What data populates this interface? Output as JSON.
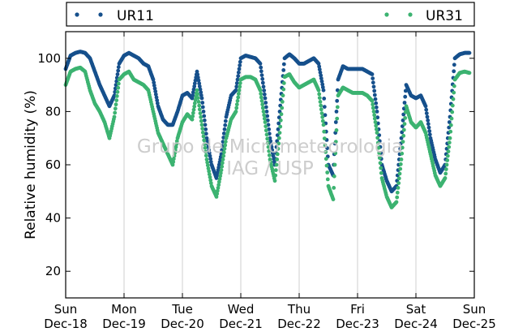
{
  "chart_data": {
    "type": "scatter",
    "title": "",
    "xlabel": "",
    "ylabel": "Relative humidity (%)",
    "ylim": [
      10,
      110
    ],
    "xlim": [
      "2016-12-18",
      "2016-12-25"
    ],
    "y_ticks": [
      20,
      40,
      60,
      80,
      100
    ],
    "x_ticks": [
      {
        "date": "2016-12-18",
        "day": "Sun",
        "label": "Dec-18"
      },
      {
        "date": "2016-12-19",
        "day": "Mon",
        "label": "Dec-19"
      },
      {
        "date": "2016-12-20",
        "day": "Tue",
        "label": "Dec-20"
      },
      {
        "date": "2016-12-21",
        "day": "Wed",
        "label": "Dec-21"
      },
      {
        "date": "2016-12-22",
        "day": "Thu",
        "label": "Dec-22"
      },
      {
        "date": "2016-12-23",
        "day": "Fri",
        "label": "Dec-23"
      },
      {
        "date": "2016-12-24",
        "day": "Sat",
        "label": "Dec-24"
      },
      {
        "date": "2016-12-25",
        "day": "Sun",
        "label": "Dec-25"
      }
    ],
    "grid": "vertical",
    "legend_position": "top, outside plot",
    "watermark": [
      "Grupo de Micrometeorologia",
      "IAG / USP"
    ],
    "series": [
      {
        "name": "UR11",
        "color": "#16508c",
        "points": [
          [
            "2016-12-18 00:00",
            96
          ],
          [
            "2016-12-18 02:00",
            101
          ],
          [
            "2016-12-18 04:00",
            102
          ],
          [
            "2016-12-18 06:00",
            102.5
          ],
          [
            "2016-12-18 08:00",
            102
          ],
          [
            "2016-12-18 10:00",
            100
          ],
          [
            "2016-12-18 12:00",
            95
          ],
          [
            "2016-12-18 14:00",
            90
          ],
          [
            "2016-12-18 16:00",
            86
          ],
          [
            "2016-12-18 18:00",
            82
          ],
          [
            "2016-12-18 20:00",
            86
          ],
          [
            "2016-12-18 22:00",
            98
          ],
          [
            "2016-12-19 00:00",
            101
          ],
          [
            "2016-12-19 02:00",
            102
          ],
          [
            "2016-12-19 04:00",
            101
          ],
          [
            "2016-12-19 06:00",
            100
          ],
          [
            "2016-12-19 08:00",
            98
          ],
          [
            "2016-12-19 10:00",
            97
          ],
          [
            "2016-12-19 12:00",
            92
          ],
          [
            "2016-12-19 14:00",
            82
          ],
          [
            "2016-12-19 16:00",
            77
          ],
          [
            "2016-12-19 18:00",
            75
          ],
          [
            "2016-12-19 20:00",
            75
          ],
          [
            "2016-12-19 22:00",
            80
          ],
          [
            "2016-12-20 00:00",
            86
          ],
          [
            "2016-12-20 02:00",
            87
          ],
          [
            "2016-12-20 04:00",
            85
          ],
          [
            "2016-12-20 06:00",
            95
          ],
          [
            "2016-12-20 08:00",
            85
          ],
          [
            "2016-12-20 10:00",
            70
          ],
          [
            "2016-12-20 12:00",
            60
          ],
          [
            "2016-12-20 14:00",
            55
          ],
          [
            "2016-12-20 16:00",
            64
          ],
          [
            "2016-12-20 18:00",
            78
          ],
          [
            "2016-12-20 20:00",
            86
          ],
          [
            "2016-12-20 22:00",
            88
          ],
          [
            "2016-12-21 00:00",
            100
          ],
          [
            "2016-12-21 02:00",
            101
          ],
          [
            "2016-12-21 04:00",
            100.5
          ],
          [
            "2016-12-21 06:00",
            100
          ],
          [
            "2016-12-21 08:00",
            98
          ],
          [
            "2016-12-21 10:00",
            85
          ],
          [
            "2016-12-21 12:00",
            70
          ],
          [
            "2016-12-21 14:00",
            60
          ],
          [
            "2016-12-21 16:00",
            80
          ],
          [
            "2016-12-21 18:00",
            100
          ],
          [
            "2016-12-21 20:00",
            101.5
          ],
          [
            "2016-12-21 22:00",
            100
          ],
          [
            "2016-12-22 00:00",
            98
          ],
          [
            "2016-12-22 02:00",
            98
          ],
          [
            "2016-12-22 04:00",
            99
          ],
          [
            "2016-12-22 06:00",
            100
          ],
          [
            "2016-12-22 08:00",
            98
          ],
          [
            "2016-12-22 10:00",
            88
          ],
          [
            "2016-12-22 12:00",
            60
          ],
          [
            "2016-12-22 14:00",
            56
          ],
          [
            "2016-12-22 16:00",
            92
          ],
          [
            "2016-12-22 18:00",
            97
          ],
          [
            "2016-12-22 20:00",
            96
          ],
          [
            "2016-12-22 22:00",
            96
          ],
          [
            "2016-12-23 00:00",
            96
          ],
          [
            "2016-12-23 02:00",
            96
          ],
          [
            "2016-12-23 04:00",
            95
          ],
          [
            "2016-12-23 06:00",
            94
          ],
          [
            "2016-12-23 08:00",
            80
          ],
          [
            "2016-12-23 10:00",
            60
          ],
          [
            "2016-12-23 12:00",
            54
          ],
          [
            "2016-12-23 14:00",
            50
          ],
          [
            "2016-12-23 16:00",
            52
          ],
          [
            "2016-12-23 18:00",
            70
          ],
          [
            "2016-12-23 20:00",
            90
          ],
          [
            "2016-12-23 22:00",
            86
          ],
          [
            "2016-12-24 00:00",
            85
          ],
          [
            "2016-12-24 02:00",
            86
          ],
          [
            "2016-12-24 04:00",
            82
          ],
          [
            "2016-12-24 06:00",
            70
          ],
          [
            "2016-12-24 08:00",
            62
          ],
          [
            "2016-12-24 10:00",
            57
          ],
          [
            "2016-12-24 12:00",
            60
          ],
          [
            "2016-12-24 14:00",
            78
          ],
          [
            "2016-12-24 16:00",
            100
          ],
          [
            "2016-12-24 18:00",
            101.5
          ],
          [
            "2016-12-24 20:00",
            102
          ],
          [
            "2016-12-24 22:00",
            102
          ]
        ]
      },
      {
        "name": "UR31",
        "color": "#3cb371",
        "points": [
          [
            "2016-12-18 00:00",
            90
          ],
          [
            "2016-12-18 02:00",
            95
          ],
          [
            "2016-12-18 04:00",
            96
          ],
          [
            "2016-12-18 06:00",
            96.5
          ],
          [
            "2016-12-18 08:00",
            95
          ],
          [
            "2016-12-18 10:00",
            88
          ],
          [
            "2016-12-18 12:00",
            83
          ],
          [
            "2016-12-18 14:00",
            80
          ],
          [
            "2016-12-18 16:00",
            76
          ],
          [
            "2016-12-18 18:00",
            70
          ],
          [
            "2016-12-18 20:00",
            78
          ],
          [
            "2016-12-18 22:00",
            92
          ],
          [
            "2016-12-19 00:00",
            94
          ],
          [
            "2016-12-19 02:00",
            95
          ],
          [
            "2016-12-19 04:00",
            92
          ],
          [
            "2016-12-19 06:00",
            91
          ],
          [
            "2016-12-19 08:00",
            90
          ],
          [
            "2016-12-19 10:00",
            88
          ],
          [
            "2016-12-19 12:00",
            80
          ],
          [
            "2016-12-19 14:00",
            72
          ],
          [
            "2016-12-19 16:00",
            68
          ],
          [
            "2016-12-19 18:00",
            64
          ],
          [
            "2016-12-19 20:00",
            60
          ],
          [
            "2016-12-19 22:00",
            70
          ],
          [
            "2016-12-20 00:00",
            76
          ],
          [
            "2016-12-20 02:00",
            79
          ],
          [
            "2016-12-20 04:00",
            77
          ],
          [
            "2016-12-20 06:00",
            88
          ],
          [
            "2016-12-20 08:00",
            75
          ],
          [
            "2016-12-20 10:00",
            62
          ],
          [
            "2016-12-20 12:00",
            52
          ],
          [
            "2016-12-20 14:00",
            48
          ],
          [
            "2016-12-20 16:00",
            58
          ],
          [
            "2016-12-20 18:00",
            70
          ],
          [
            "2016-12-20 20:00",
            77
          ],
          [
            "2016-12-20 22:00",
            80
          ],
          [
            "2016-12-21 00:00",
            92
          ],
          [
            "2016-12-21 02:00",
            93
          ],
          [
            "2016-12-21 04:00",
            93
          ],
          [
            "2016-12-21 06:00",
            92
          ],
          [
            "2016-12-21 08:00",
            88
          ],
          [
            "2016-12-21 10:00",
            76
          ],
          [
            "2016-12-21 12:00",
            62
          ],
          [
            "2016-12-21 14:00",
            54
          ],
          [
            "2016-12-21 16:00",
            72
          ],
          [
            "2016-12-21 18:00",
            93
          ],
          [
            "2016-12-21 20:00",
            94
          ],
          [
            "2016-12-21 22:00",
            91
          ],
          [
            "2016-12-22 00:00",
            89
          ],
          [
            "2016-12-22 02:00",
            90
          ],
          [
            "2016-12-22 04:00",
            91
          ],
          [
            "2016-12-22 06:00",
            92
          ],
          [
            "2016-12-22 08:00",
            88
          ],
          [
            "2016-12-22 10:00",
            75
          ],
          [
            "2016-12-22 12:00",
            52
          ],
          [
            "2016-12-22 14:00",
            47
          ],
          [
            "2016-12-22 16:00",
            86
          ],
          [
            "2016-12-22 18:00",
            89
          ],
          [
            "2016-12-22 20:00",
            88
          ],
          [
            "2016-12-22 22:00",
            87
          ],
          [
            "2016-12-23 00:00",
            87
          ],
          [
            "2016-12-23 02:00",
            87
          ],
          [
            "2016-12-23 04:00",
            86
          ],
          [
            "2016-12-23 06:00",
            84
          ],
          [
            "2016-12-23 08:00",
            72
          ],
          [
            "2016-12-23 10:00",
            55
          ],
          [
            "2016-12-23 12:00",
            48
          ],
          [
            "2016-12-23 14:00",
            44
          ],
          [
            "2016-12-23 16:00",
            46
          ],
          [
            "2016-12-23 18:00",
            62
          ],
          [
            "2016-12-23 20:00",
            82
          ],
          [
            "2016-12-23 22:00",
            76
          ],
          [
            "2016-12-24 00:00",
            74
          ],
          [
            "2016-12-24 02:00",
            76
          ],
          [
            "2016-12-24 04:00",
            72
          ],
          [
            "2016-12-24 06:00",
            64
          ],
          [
            "2016-12-24 08:00",
            56
          ],
          [
            "2016-12-24 10:00",
            52
          ],
          [
            "2016-12-24 12:00",
            55
          ],
          [
            "2016-12-24 14:00",
            70
          ],
          [
            "2016-12-24 16:00",
            92
          ],
          [
            "2016-12-24 18:00",
            94.5
          ],
          [
            "2016-12-24 20:00",
            95
          ],
          [
            "2016-12-24 22:00",
            94.5
          ]
        ]
      }
    ]
  }
}
